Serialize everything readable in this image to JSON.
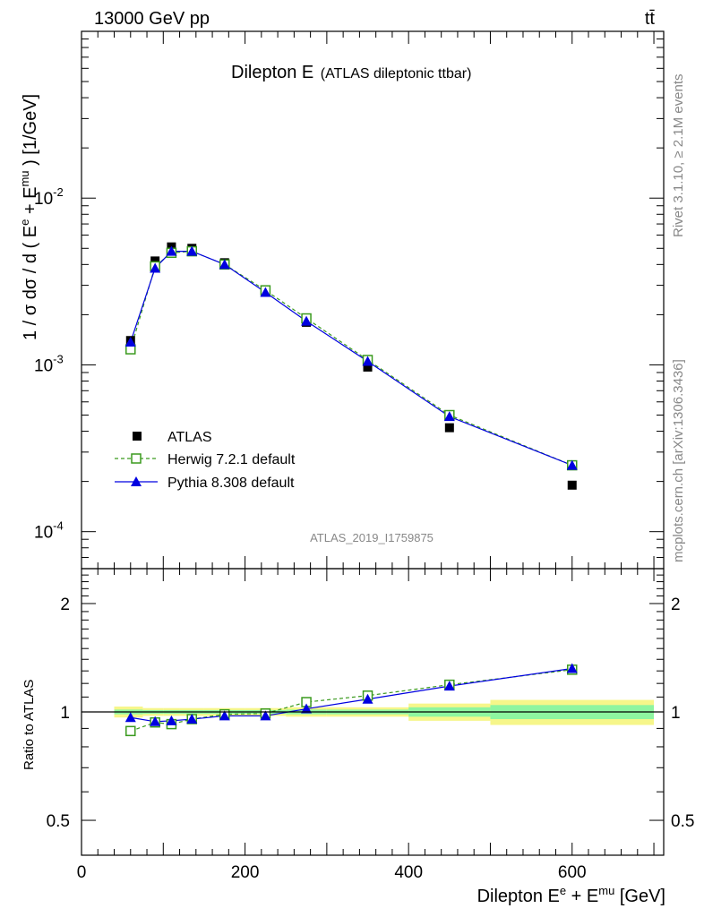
{
  "header": {
    "left": "13000 GeV pp",
    "right": "tt̄"
  },
  "side_labels": {
    "rivet": "Rivet 3.1.10, ≥ 2.1M events",
    "mcplots": "mcplots.cern.ch [arXiv:1306.3436]"
  },
  "chart_data": [
    {
      "type": "scatter",
      "title": "Dilepton E",
      "subtitle": "(ATLAS dileptonic ttbar)",
      "watermark": "ATLAS_2019_I1759875",
      "ylabel": "1 / σ dσ / d ( E^e + E^mu ) [1/GeV]",
      "yscale": "log",
      "ylim": [
        6e-05,
        0.1
      ],
      "xlim": [
        0,
        712
      ],
      "ytick_labels": [
        "10^-4",
        "10^-3",
        "10^-2"
      ],
      "legend_position": "lower-left",
      "series": [
        {
          "name": "ATLAS",
          "color": "#000000",
          "marker": "filled-square",
          "x": [
            60,
            90,
            110,
            135,
            175,
            225,
            275,
            350,
            450,
            600
          ],
          "y": [
            0.0014,
            0.0042,
            0.0051,
            0.005,
            0.0041,
            0.0028,
            0.0018,
            0.00097,
            0.00042,
            0.00019
          ]
        },
        {
          "name": "Herwig 7.2.1 default",
          "color": "#3a9a1e",
          "marker": "open-square",
          "line": "dashed",
          "x": [
            60,
            90,
            110,
            135,
            175,
            225,
            275,
            350,
            450,
            600
          ],
          "y": [
            0.00124,
            0.0039,
            0.0047,
            0.0048,
            0.004,
            0.0028,
            0.0019,
            0.00107,
            0.0005,
            0.00025
          ]
        },
        {
          "name": "Pythia 8.308 default",
          "color": "#0000e0",
          "marker": "filled-triangle",
          "line": "solid",
          "x": [
            60,
            90,
            110,
            135,
            175,
            225,
            275,
            350,
            450,
            600
          ],
          "y": [
            0.00137,
            0.0038,
            0.0048,
            0.0048,
            0.004,
            0.00272,
            0.00183,
            0.00105,
            0.00049,
            0.00025
          ]
        }
      ]
    },
    {
      "type": "scatter",
      "ylabel": "Ratio to ATLAS",
      "xlabel": "Dilepton E^e + E^mu [GeV]",
      "yscale": "log",
      "ylim": [
        0.4,
        2.5
      ],
      "xlim": [
        0,
        712
      ],
      "xticks": [
        0,
        200,
        400,
        600
      ],
      "yticks": [
        0.5,
        1,
        2
      ],
      "ytick_labels": [
        "0.5",
        "1",
        "2"
      ],
      "uncertainty_bands": [
        {
          "x0": 40,
          "x1": 75,
          "inner": [
            0.985,
            1.015
          ],
          "outer": [
            0.965,
            1.035
          ]
        },
        {
          "x0": 75,
          "x1": 100,
          "inner": [
            0.988,
            1.012
          ],
          "outer": [
            0.975,
            1.025
          ]
        },
        {
          "x0": 100,
          "x1": 120,
          "inner": [
            0.988,
            1.012
          ],
          "outer": [
            0.975,
            1.025
          ]
        },
        {
          "x0": 120,
          "x1": 150,
          "inner": [
            0.988,
            1.012
          ],
          "outer": [
            0.975,
            1.025
          ]
        },
        {
          "x0": 150,
          "x1": 200,
          "inner": [
            0.988,
            1.012
          ],
          "outer": [
            0.975,
            1.025
          ]
        },
        {
          "x0": 200,
          "x1": 250,
          "inner": [
            0.988,
            1.012
          ],
          "outer": [
            0.975,
            1.025
          ]
        },
        {
          "x0": 250,
          "x1": 300,
          "inner": [
            0.985,
            1.015
          ],
          "outer": [
            0.97,
            1.03
          ]
        },
        {
          "x0": 300,
          "x1": 400,
          "inner": [
            0.985,
            1.015
          ],
          "outer": [
            0.97,
            1.03
          ]
        },
        {
          "x0": 400,
          "x1": 500,
          "inner": [
            0.97,
            1.03
          ],
          "outer": [
            0.945,
            1.055
          ]
        },
        {
          "x0": 500,
          "x1": 700,
          "inner": [
            0.955,
            1.045
          ],
          "outer": [
            0.92,
            1.08
          ]
        }
      ],
      "series": [
        {
          "name": "Herwig 7.2.1 default",
          "color": "#3a9a1e",
          "marker": "open-square",
          "line": "dashed",
          "x": [
            60,
            90,
            110,
            135,
            175,
            225,
            275,
            350,
            450,
            600
          ],
          "y": [
            0.885,
            0.935,
            0.925,
            0.955,
            0.985,
            0.99,
            1.065,
            1.11,
            1.19,
            1.31
          ]
        },
        {
          "name": "Pythia 8.308 default",
          "color": "#0000e0",
          "marker": "filled-triangle",
          "line": "solid",
          "x": [
            60,
            90,
            110,
            135,
            175,
            225,
            275,
            350,
            450,
            600
          ],
          "y": [
            0.965,
            0.94,
            0.945,
            0.955,
            0.975,
            0.975,
            1.02,
            1.085,
            1.18,
            1.32
          ]
        }
      ]
    }
  ]
}
